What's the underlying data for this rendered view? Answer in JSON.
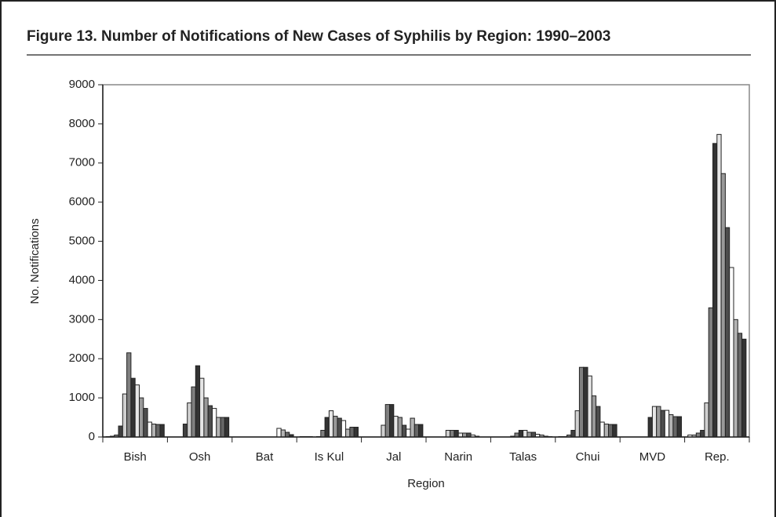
{
  "chart_data": {
    "type": "bar",
    "title": "Figure 13. Number of Notifications of New Cases of Syphilis by Region: 1990–2003",
    "x_label": "Region",
    "y_label": "No. Notifications",
    "categories": [
      "Bish",
      "Osh",
      "Bat",
      "Is Kul",
      "Jal",
      "Narin",
      "Talas",
      "Chui",
      "MVD",
      "Rep."
    ],
    "ylim": [
      0,
      9000
    ],
    "yticks": [
      0,
      1000,
      2000,
      3000,
      4000,
      5000,
      6000,
      7000,
      8000,
      9000
    ],
    "series": [
      {
        "color": "#ffffff",
        "values": [
          10,
          0,
          0,
          10,
          0,
          0,
          0,
          10,
          0,
          50
        ]
      },
      {
        "color": "#bfbfbf",
        "values": [
          20,
          0,
          0,
          10,
          0,
          0,
          0,
          10,
          0,
          50
        ]
      },
      {
        "color": "#7f7f7f",
        "values": [
          50,
          0,
          0,
          10,
          0,
          0,
          0,
          50,
          0,
          100
        ]
      },
      {
        "color": "#404040",
        "values": [
          280,
          330,
          0,
          0,
          0,
          0,
          0,
          170,
          0,
          170
        ]
      },
      {
        "color": "#d0d0d0",
        "values": [
          1100,
          870,
          0,
          10,
          300,
          170,
          20,
          670,
          0,
          870
        ]
      },
      {
        "color": "#808080",
        "values": [
          2150,
          1280,
          0,
          170,
          830,
          170,
          100,
          1780,
          0,
          3300
        ]
      },
      {
        "color": "#333333",
        "values": [
          1500,
          1820,
          0,
          500,
          830,
          170,
          170,
          1780,
          500,
          7500
        ]
      },
      {
        "color": "#e6e6e6",
        "values": [
          1330,
          1500,
          0,
          670,
          530,
          100,
          170,
          1560,
          780,
          7730
        ]
      },
      {
        "color": "#999999",
        "values": [
          1000,
          1000,
          0,
          530,
          500,
          100,
          120,
          1050,
          780,
          6730
        ]
      },
      {
        "color": "#4d4d4d",
        "values": [
          730,
          800,
          0,
          480,
          300,
          100,
          120,
          780,
          680,
          5350
        ]
      },
      {
        "color": "#ffffff",
        "values": [
          380,
          730,
          220,
          420,
          200,
          50,
          70,
          380,
          680,
          4330
        ]
      },
      {
        "color": "#b3b3b3",
        "values": [
          330,
          500,
          180,
          200,
          480,
          20,
          50,
          330,
          570,
          3000
        ]
      },
      {
        "color": "#666666",
        "values": [
          320,
          500,
          120,
          250,
          320,
          0,
          20,
          320,
          520,
          2650
        ]
      },
      {
        "color": "#333333",
        "values": [
          320,
          500,
          60,
          250,
          320,
          0,
          10,
          320,
          520,
          2500
        ]
      }
    ]
  }
}
